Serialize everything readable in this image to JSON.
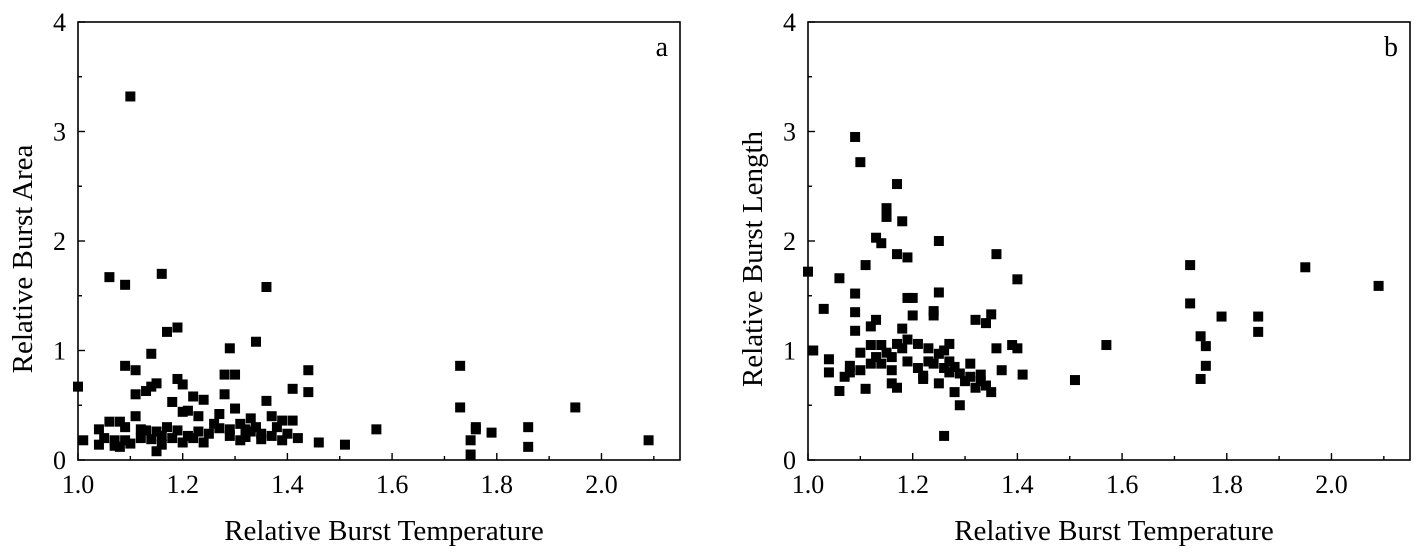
{
  "chart_data": [
    {
      "type": "scatter",
      "panel_label": "a",
      "xlabel": "Relative Burst Temperature",
      "ylabel": "Relative Burst Area",
      "xlim": [
        1.0,
        2.15
      ],
      "ylim": [
        0,
        4
      ],
      "xticks": [
        1.0,
        1.2,
        1.4,
        1.6,
        1.8,
        2.0
      ],
      "xtick_labels": [
        "1.0",
        "1.2",
        "1.4",
        "1.6",
        "1.8",
        "2.0"
      ],
      "yticks": [
        0,
        1,
        2,
        3,
        4
      ],
      "ytick_labels": [
        "0",
        "1",
        "2",
        "3",
        "4"
      ],
      "grid": false,
      "marker": "square",
      "points": [
        [
          1.0,
          0.67
        ],
        [
          1.01,
          0.18
        ],
        [
          1.04,
          0.28
        ],
        [
          1.04,
          0.14
        ],
        [
          1.05,
          0.2
        ],
        [
          1.06,
          1.67
        ],
        [
          1.06,
          0.35
        ],
        [
          1.07,
          0.18
        ],
        [
          1.07,
          0.13
        ],
        [
          1.08,
          0.35
        ],
        [
          1.08,
          0.12
        ],
        [
          1.09,
          0.86
        ],
        [
          1.09,
          1.6
        ],
        [
          1.09,
          0.3
        ],
        [
          1.09,
          0.18
        ],
        [
          1.1,
          3.32
        ],
        [
          1.1,
          0.15
        ],
        [
          1.11,
          0.4
        ],
        [
          1.11,
          0.82
        ],
        [
          1.11,
          0.6
        ],
        [
          1.12,
          0.28
        ],
        [
          1.12,
          0.2
        ],
        [
          1.13,
          0.63
        ],
        [
          1.13,
          0.27
        ],
        [
          1.14,
          0.67
        ],
        [
          1.14,
          0.19
        ],
        [
          1.14,
          0.97
        ],
        [
          1.15,
          0.26
        ],
        [
          1.15,
          0.08
        ],
        [
          1.15,
          0.7
        ],
        [
          1.16,
          1.7
        ],
        [
          1.16,
          0.22
        ],
        [
          1.16,
          0.14
        ],
        [
          1.17,
          1.17
        ],
        [
          1.17,
          0.3
        ],
        [
          1.18,
          0.53
        ],
        [
          1.18,
          0.2
        ],
        [
          1.19,
          1.21
        ],
        [
          1.19,
          0.74
        ],
        [
          1.19,
          0.27
        ],
        [
          1.2,
          0.16
        ],
        [
          1.2,
          0.44
        ],
        [
          1.2,
          0.69
        ],
        [
          1.21,
          0.22
        ],
        [
          1.21,
          0.45
        ],
        [
          1.22,
          0.58
        ],
        [
          1.22,
          0.2
        ],
        [
          1.23,
          0.26
        ],
        [
          1.23,
          0.4
        ],
        [
          1.24,
          0.55
        ],
        [
          1.24,
          0.16
        ],
        [
          1.25,
          0.24
        ],
        [
          1.26,
          0.33
        ],
        [
          1.27,
          0.29
        ],
        [
          1.27,
          0.42
        ],
        [
          1.28,
          0.6
        ],
        [
          1.28,
          0.78
        ],
        [
          1.29,
          1.02
        ],
        [
          1.29,
          0.28
        ],
        [
          1.29,
          0.22
        ],
        [
          1.3,
          0.47
        ],
        [
          1.3,
          0.78
        ],
        [
          1.31,
          0.33
        ],
        [
          1.31,
          0.18
        ],
        [
          1.32,
          0.28
        ],
        [
          1.32,
          0.21
        ],
        [
          1.33,
          0.26
        ],
        [
          1.33,
          0.38
        ],
        [
          1.34,
          1.08
        ],
        [
          1.34,
          0.3
        ],
        [
          1.35,
          0.19
        ],
        [
          1.35,
          0.24
        ],
        [
          1.36,
          1.58
        ],
        [
          1.36,
          0.54
        ],
        [
          1.37,
          0.4
        ],
        [
          1.37,
          0.22
        ],
        [
          1.38,
          0.3
        ],
        [
          1.39,
          0.36
        ],
        [
          1.39,
          0.18
        ],
        [
          1.4,
          0.24
        ],
        [
          1.41,
          0.65
        ],
        [
          1.41,
          0.36
        ],
        [
          1.42,
          0.2
        ],
        [
          1.44,
          0.82
        ],
        [
          1.44,
          0.62
        ],
        [
          1.46,
          0.16
        ],
        [
          1.51,
          0.14
        ],
        [
          1.57,
          0.28
        ],
        [
          1.73,
          0.86
        ],
        [
          1.73,
          0.48
        ],
        [
          1.75,
          0.05
        ],
        [
          1.75,
          0.18
        ],
        [
          1.76,
          0.28
        ],
        [
          1.76,
          0.3
        ],
        [
          1.79,
          0.25
        ],
        [
          1.86,
          0.3
        ],
        [
          1.86,
          0.12
        ],
        [
          1.95,
          0.48
        ],
        [
          2.09,
          0.18
        ]
      ]
    },
    {
      "type": "scatter",
      "panel_label": "b",
      "xlabel": "Relative Burst Temperature",
      "ylabel": "Relative Burst Length",
      "xlim": [
        1.0,
        2.15
      ],
      "ylim": [
        0,
        4
      ],
      "xticks": [
        1.0,
        1.2,
        1.4,
        1.6,
        1.8,
        2.0
      ],
      "xtick_labels": [
        "1.0",
        "1.2",
        "1.4",
        "1.6",
        "1.8",
        "2.0"
      ],
      "yticks": [
        0,
        1,
        2,
        3,
        4
      ],
      "ytick_labels": [
        "0",
        "1",
        "2",
        "3",
        "4"
      ],
      "grid": false,
      "marker": "square",
      "points": [
        [
          1.0,
          1.72
        ],
        [
          1.01,
          1.0
        ],
        [
          1.03,
          1.38
        ],
        [
          1.04,
          0.8
        ],
        [
          1.04,
          0.92
        ],
        [
          1.06,
          1.66
        ],
        [
          1.06,
          0.63
        ],
        [
          1.07,
          0.76
        ],
        [
          1.08,
          0.86
        ],
        [
          1.08,
          0.8
        ],
        [
          1.09,
          1.52
        ],
        [
          1.09,
          1.18
        ],
        [
          1.09,
          2.95
        ],
        [
          1.09,
          1.35
        ],
        [
          1.1,
          2.72
        ],
        [
          1.1,
          0.98
        ],
        [
          1.1,
          0.82
        ],
        [
          1.11,
          0.65
        ],
        [
          1.11,
          1.78
        ],
        [
          1.12,
          1.22
        ],
        [
          1.12,
          1.05
        ],
        [
          1.12,
          0.88
        ],
        [
          1.13,
          1.28
        ],
        [
          1.13,
          0.94
        ],
        [
          1.13,
          2.03
        ],
        [
          1.14,
          1.98
        ],
        [
          1.14,
          1.05
        ],
        [
          1.14,
          0.88
        ],
        [
          1.15,
          0.98
        ],
        [
          1.15,
          2.3
        ],
        [
          1.15,
          2.22
        ],
        [
          1.16,
          0.94
        ],
        [
          1.16,
          0.82
        ],
        [
          1.16,
          0.7
        ],
        [
          1.17,
          1.88
        ],
        [
          1.17,
          1.06
        ],
        [
          1.17,
          0.66
        ],
        [
          1.17,
          2.52
        ],
        [
          1.18,
          2.18
        ],
        [
          1.18,
          1.2
        ],
        [
          1.18,
          1.02
        ],
        [
          1.19,
          0.9
        ],
        [
          1.19,
          1.85
        ],
        [
          1.19,
          1.48
        ],
        [
          1.19,
          1.1
        ],
        [
          1.2,
          1.32
        ],
        [
          1.2,
          1.48
        ],
        [
          1.21,
          1.06
        ],
        [
          1.21,
          0.84
        ],
        [
          1.22,
          0.74
        ],
        [
          1.22,
          0.77
        ],
        [
          1.23,
          0.9
        ],
        [
          1.23,
          1.02
        ],
        [
          1.24,
          1.36
        ],
        [
          1.24,
          1.32
        ],
        [
          1.24,
          0.88
        ],
        [
          1.25,
          2.0
        ],
        [
          1.25,
          1.53
        ],
        [
          1.25,
          0.7
        ],
        [
          1.25,
          0.97
        ],
        [
          1.26,
          1.0
        ],
        [
          1.26,
          0.84
        ],
        [
          1.26,
          0.22
        ],
        [
          1.27,
          0.8
        ],
        [
          1.27,
          1.06
        ],
        [
          1.27,
          0.9
        ],
        [
          1.28,
          0.85
        ],
        [
          1.28,
          0.62
        ],
        [
          1.29,
          0.79
        ],
        [
          1.29,
          0.5
        ],
        [
          1.3,
          0.72
        ],
        [
          1.31,
          0.88
        ],
        [
          1.31,
          0.76
        ],
        [
          1.32,
          1.28
        ],
        [
          1.32,
          0.66
        ],
        [
          1.33,
          0.78
        ],
        [
          1.33,
          0.72
        ],
        [
          1.34,
          0.68
        ],
        [
          1.34,
          1.25
        ],
        [
          1.35,
          1.33
        ],
        [
          1.35,
          0.62
        ],
        [
          1.36,
          1.02
        ],
        [
          1.36,
          1.88
        ],
        [
          1.37,
          0.82
        ],
        [
          1.39,
          1.05
        ],
        [
          1.4,
          1.02
        ],
        [
          1.4,
          1.65
        ],
        [
          1.41,
          0.78
        ],
        [
          1.51,
          0.73
        ],
        [
          1.57,
          1.05
        ],
        [
          1.73,
          1.78
        ],
        [
          1.73,
          1.43
        ],
        [
          1.75,
          0.74
        ],
        [
          1.75,
          1.13
        ],
        [
          1.76,
          0.86
        ],
        [
          1.76,
          1.04
        ],
        [
          1.79,
          1.31
        ],
        [
          1.86,
          1.31
        ],
        [
          1.86,
          1.17
        ],
        [
          1.95,
          1.76
        ],
        [
          2.09,
          1.59
        ]
      ]
    }
  ]
}
